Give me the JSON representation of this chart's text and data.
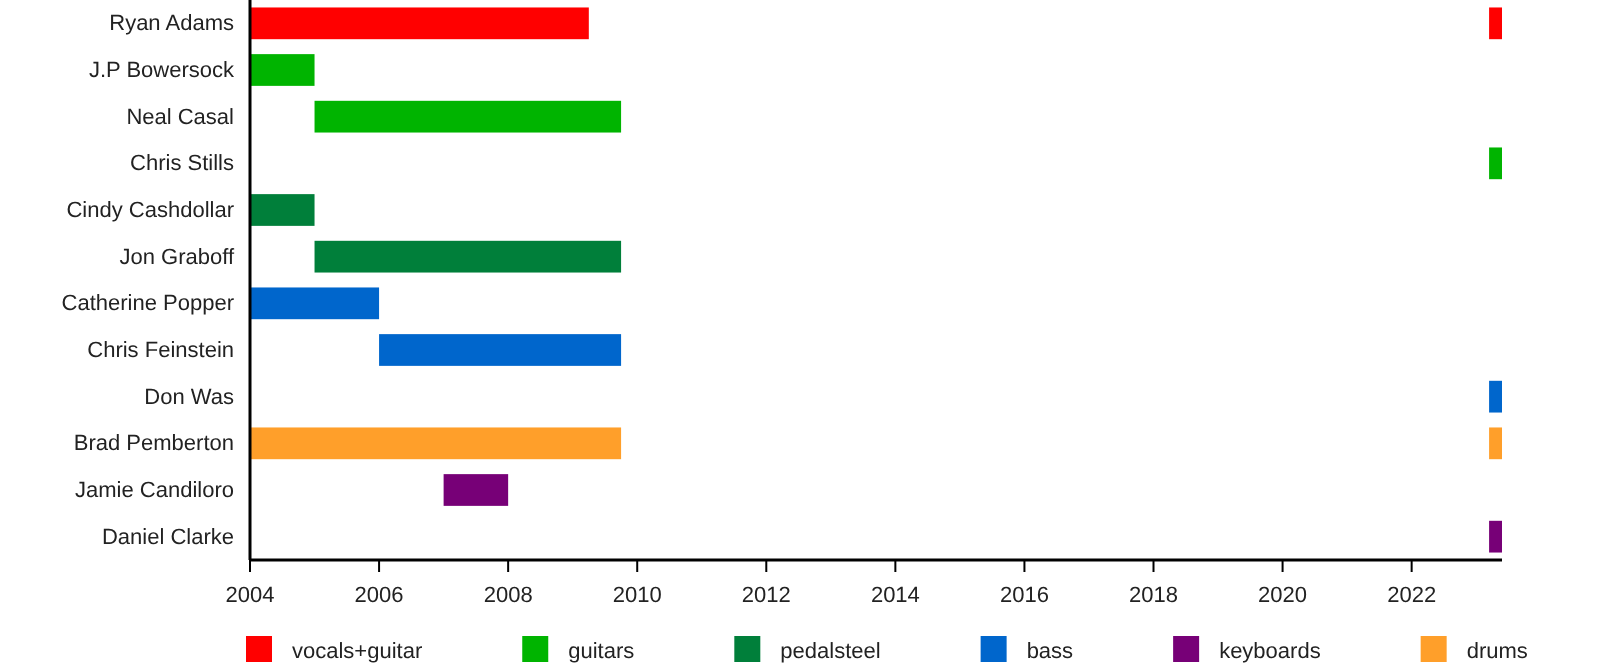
{
  "chart_data": {
    "type": "bar",
    "orientation": "horizontal",
    "categories": [
      "Ryan Adams",
      "J.P Bowersock",
      "Neal Casal",
      "Chris Stills",
      "Cindy Cashdollar",
      "Jon Graboff",
      "Catherine Popper",
      "Chris Feinstein",
      "Don Was",
      "Brad Pemberton",
      "Jamie Candiloro",
      "Daniel Clarke"
    ],
    "series": [
      {
        "name": "vocals+guitar",
        "color": "#ff0000",
        "base": [
          2004,
          null,
          null,
          null,
          null,
          null,
          null,
          null,
          null,
          null,
          null,
          null
        ],
        "values": [
          5.25,
          null,
          null,
          null,
          null,
          null,
          null,
          null,
          null,
          null,
          null,
          null
        ]
      },
      {
        "name": "guitars",
        "color": "#00b400",
        "base": [
          null,
          2004,
          2005,
          null,
          null,
          null,
          null,
          null,
          null,
          null,
          null,
          null
        ],
        "values": [
          null,
          1,
          4.75,
          null,
          null,
          null,
          null,
          null,
          null,
          null,
          null,
          null
        ]
      },
      {
        "name": "pedalsteel",
        "color": "#007f3a",
        "base": [
          null,
          null,
          null,
          null,
          2004,
          2005,
          null,
          null,
          null,
          null,
          null,
          null
        ],
        "values": [
          null,
          null,
          null,
          null,
          1,
          4.75,
          null,
          null,
          null,
          null,
          null,
          null
        ]
      },
      {
        "name": "bass",
        "color": "#0066cc",
        "base": [
          null,
          null,
          null,
          null,
          null,
          null,
          2004,
          2006,
          null,
          null,
          null,
          null
        ],
        "values": [
          null,
          null,
          null,
          null,
          null,
          null,
          2,
          3.75,
          null,
          null,
          null,
          null
        ]
      },
      {
        "name": "keyboards",
        "color": "#770077",
        "base": [
          null,
          null,
          null,
          null,
          null,
          null,
          null,
          null,
          null,
          null,
          2007,
          null
        ],
        "values": [
          null,
          null,
          null,
          null,
          null,
          null,
          null,
          null,
          null,
          null,
          1,
          null
        ]
      },
      {
        "name": "drums",
        "color": "#ff9f2a",
        "base": [
          null,
          null,
          null,
          null,
          null,
          null,
          null,
          null,
          null,
          2004,
          null,
          null
        ],
        "values": [
          null,
          null,
          null,
          null,
          null,
          null,
          null,
          null,
          null,
          5.75,
          null,
          null
        ]
      },
      {
        "colors": [
          "#ff0000",
          null,
          null,
          "#00b400",
          null,
          null,
          null,
          null,
          "#0066cc",
          "#ff9f2a",
          null,
          "#770077"
        ],
        "base": [
          2023.2,
          null,
          null,
          2023.2,
          null,
          null,
          null,
          null,
          2023.2,
          2023.2,
          null,
          2023.2
        ],
        "values": [
          0.2,
          null,
          null,
          0.2,
          null,
          null,
          null,
          null,
          0.2,
          0.2,
          null,
          0.2
        ]
      }
    ],
    "xlim": [
      2004,
      2023.4
    ],
    "xticks": [
      2004,
      2006,
      2008,
      2010,
      2012,
      2014,
      2016,
      2018,
      2020,
      2022
    ],
    "legend": "bottom"
  }
}
